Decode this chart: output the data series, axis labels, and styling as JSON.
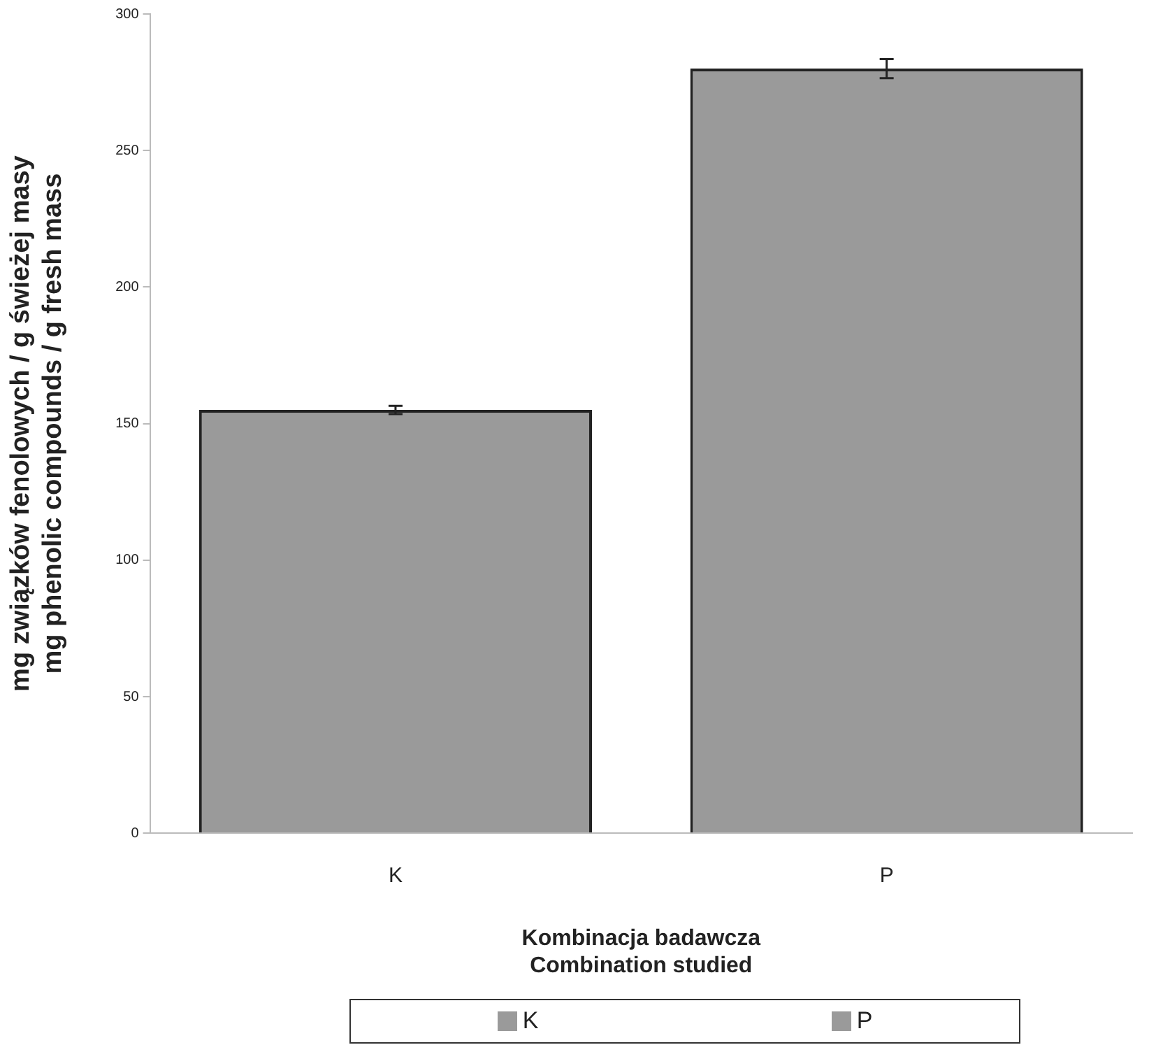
{
  "chart_data": {
    "type": "bar",
    "xlabel": "Kombinacja badawcza\nCombination studied",
    "ylabel": "mg związków fenolowych / g świeżej masy\nmg phenolic compounds / g fresh mass",
    "categories": [
      "K",
      "P"
    ],
    "series": [
      {
        "name": "K",
        "color": "#9a9a9a",
        "values": [
          155,
          null
        ],
        "errors": [
          1.5,
          null
        ]
      },
      {
        "name": "P",
        "color": "#9a9a9a",
        "values": [
          null,
          280
        ],
        "errors": [
          null,
          3.5
        ]
      }
    ],
    "ylim": [
      0,
      300
    ],
    "yticks": [
      0,
      50,
      100,
      150,
      200,
      250,
      300
    ],
    "grid": false,
    "legend": "bottom"
  }
}
